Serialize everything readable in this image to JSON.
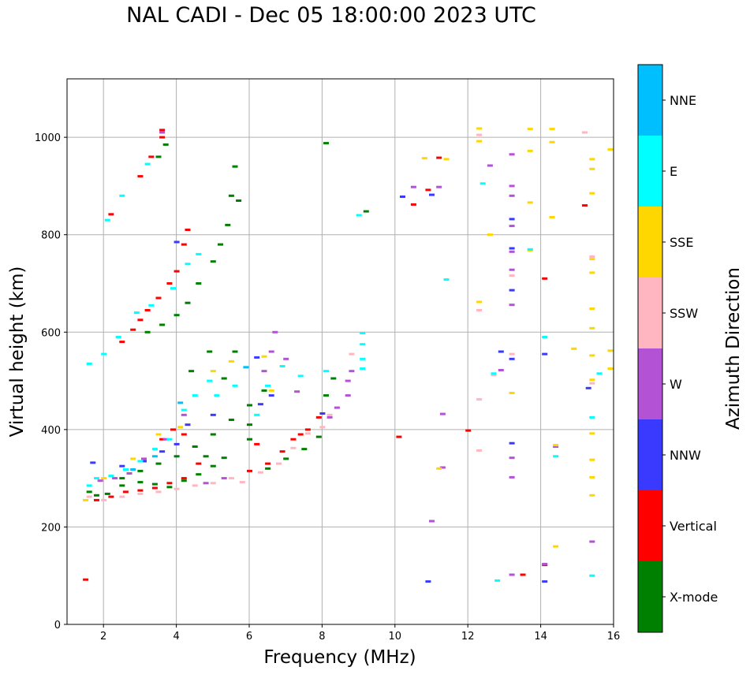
{
  "chart_data": {
    "type": "scatter",
    "title": "NAL CADI - Dec 05 18:00:00 2023 UTC",
    "xlabel": "Frequency (MHz)",
    "ylabel": "Virtual height (km)",
    "xlim": [
      1.0,
      16.0
    ],
    "ylim": [
      0,
      1120
    ],
    "xticks": [
      2,
      4,
      6,
      8,
      10,
      12,
      14,
      16
    ],
    "yticks": [
      0,
      200,
      400,
      600,
      800,
      1000
    ],
    "grid": true,
    "colorbar": {
      "label": "Azimuth Direction",
      "categories": [
        "X-mode",
        "Vertical",
        "NNW",
        "W",
        "SSW",
        "SSE",
        "E",
        "NNE"
      ],
      "colors": [
        "#008000",
        "#ff0000",
        "#3a3aff",
        "#b452d6",
        "#ffb6c1",
        "#ffd700",
        "#00ffff",
        "#00bfff"
      ]
    },
    "series": [
      {
        "name": "X-mode",
        "points": [
          [
            1.6,
            272
          ],
          [
            1.8,
            265
          ],
          [
            2.1,
            268
          ],
          [
            2.5,
            285
          ],
          [
            3.0,
            292
          ],
          [
            3.4,
            288
          ],
          [
            3.8,
            282
          ],
          [
            4.2,
            295
          ],
          [
            4.6,
            308
          ],
          [
            5.0,
            325
          ],
          [
            5.3,
            342
          ],
          [
            2.5,
            300
          ],
          [
            3.0,
            315
          ],
          [
            3.5,
            330
          ],
          [
            4.0,
            345
          ],
          [
            4.5,
            365
          ],
          [
            5.0,
            390
          ],
          [
            5.5,
            420
          ],
          [
            6.0,
            450
          ],
          [
            6.4,
            480
          ],
          [
            3.2,
            600
          ],
          [
            3.6,
            615
          ],
          [
            4.0,
            635
          ],
          [
            4.3,
            660
          ],
          [
            4.6,
            700
          ],
          [
            5.0,
            745
          ],
          [
            5.2,
            780
          ],
          [
            5.4,
            820
          ],
          [
            5.5,
            880
          ],
          [
            5.6,
            940
          ],
          [
            3.5,
            960
          ],
          [
            3.7,
            985
          ],
          [
            5.7,
            870
          ],
          [
            6.0,
            410
          ],
          [
            6.5,
            320
          ],
          [
            7.0,
            340
          ],
          [
            7.5,
            360
          ],
          [
            7.9,
            385
          ],
          [
            8.1,
            470
          ],
          [
            8.3,
            505
          ],
          [
            8.1,
            988
          ],
          [
            9.2,
            848
          ],
          [
            5.3,
            505
          ],
          [
            5.6,
            560
          ],
          [
            6.0,
            380
          ],
          [
            4.8,
            345
          ],
          [
            4.9,
            560
          ],
          [
            4.4,
            520
          ]
        ]
      },
      {
        "name": "Vertical",
        "points": [
          [
            1.5,
            92
          ],
          [
            1.8,
            255
          ],
          [
            2.2,
            262
          ],
          [
            2.6,
            272
          ],
          [
            3.0,
            275
          ],
          [
            3.4,
            280
          ],
          [
            3.8,
            290
          ],
          [
            4.2,
            300
          ],
          [
            4.6,
            330
          ],
          [
            4.2,
            390
          ],
          [
            3.9,
            400
          ],
          [
            3.6,
            380
          ],
          [
            2.5,
            580
          ],
          [
            2.8,
            605
          ],
          [
            3.0,
            625
          ],
          [
            3.2,
            645
          ],
          [
            3.5,
            670
          ],
          [
            3.8,
            700
          ],
          [
            4.0,
            725
          ],
          [
            4.2,
            780
          ],
          [
            4.3,
            810
          ],
          [
            3.0,
            920
          ],
          [
            3.3,
            960
          ],
          [
            3.6,
            1000
          ],
          [
            6.0,
            315
          ],
          [
            6.5,
            330
          ],
          [
            6.9,
            355
          ],
          [
            7.2,
            380
          ],
          [
            7.6,
            400
          ],
          [
            7.9,
            425
          ],
          [
            10.1,
            385
          ],
          [
            10.5,
            862
          ],
          [
            10.9,
            892
          ],
          [
            11.2,
            958
          ],
          [
            12.0,
            398
          ],
          [
            14.1,
            710
          ],
          [
            13.5,
            102
          ],
          [
            14.1,
            122
          ],
          [
            15.2,
            860
          ],
          [
            3.6,
            1015
          ],
          [
            2.2,
            842
          ],
          [
            7.4,
            390
          ],
          [
            6.2,
            370
          ]
        ]
      },
      {
        "name": "NNW",
        "points": [
          [
            1.7,
            332
          ],
          [
            2.5,
            325
          ],
          [
            3.1,
            335
          ],
          [
            3.6,
            355
          ],
          [
            4.0,
            370
          ],
          [
            4.3,
            410
          ],
          [
            5.0,
            430
          ],
          [
            6.3,
            452
          ],
          [
            6.6,
            470
          ],
          [
            8.0,
            433
          ],
          [
            10.2,
            878
          ],
          [
            10.9,
            88
          ],
          [
            11.0,
            882
          ],
          [
            12.9,
            560
          ],
          [
            13.2,
            832
          ],
          [
            13.2,
            772
          ],
          [
            13.2,
            686
          ],
          [
            13.2,
            545
          ],
          [
            13.2,
            372
          ],
          [
            14.1,
            555
          ],
          [
            14.1,
            88
          ],
          [
            15.3,
            485
          ],
          [
            4.0,
            785
          ],
          [
            6.2,
            548
          ]
        ]
      },
      {
        "name": "W",
        "points": [
          [
            1.9,
            295
          ],
          [
            2.3,
            300
          ],
          [
            2.7,
            310
          ],
          [
            3.1,
            340
          ],
          [
            3.7,
            380
          ],
          [
            4.2,
            430
          ],
          [
            4.8,
            290
          ],
          [
            5.3,
            300
          ],
          [
            6.4,
            520
          ],
          [
            6.6,
            560
          ],
          [
            6.7,
            600
          ],
          [
            7.0,
            545
          ],
          [
            7.3,
            478
          ],
          [
            8.2,
            425
          ],
          [
            8.4,
            445
          ],
          [
            8.7,
            470
          ],
          [
            8.7,
            500
          ],
          [
            8.8,
            520
          ],
          [
            10.5,
            898
          ],
          [
            11.0,
            212
          ],
          [
            11.2,
            898
          ],
          [
            11.3,
            432
          ],
          [
            11.3,
            322
          ],
          [
            12.6,
            942
          ],
          [
            12.9,
            522
          ],
          [
            13.2,
            900
          ],
          [
            13.2,
            880
          ],
          [
            13.2,
            818
          ],
          [
            13.2,
            765
          ],
          [
            13.2,
            728
          ],
          [
            13.2,
            656
          ],
          [
            13.2,
            342
          ],
          [
            13.2,
            302
          ],
          [
            13.2,
            102
          ],
          [
            14.1,
            124
          ],
          [
            14.4,
            365
          ],
          [
            15.4,
            170
          ],
          [
            3.6,
            1010
          ],
          [
            13.2,
            965
          ]
        ]
      },
      {
        "name": "SSW",
        "points": [
          [
            1.6,
            262
          ],
          [
            2.0,
            255
          ],
          [
            2.5,
            262
          ],
          [
            3.0,
            268
          ],
          [
            3.5,
            272
          ],
          [
            4.0,
            278
          ],
          [
            4.5,
            285
          ],
          [
            5.0,
            290
          ],
          [
            5.5,
            300
          ],
          [
            5.8,
            292
          ],
          [
            6.3,
            312
          ],
          [
            6.8,
            330
          ],
          [
            7.2,
            362
          ],
          [
            7.6,
            392
          ],
          [
            8.0,
            405
          ],
          [
            8.2,
            430
          ],
          [
            8.8,
            555
          ],
          [
            12.3,
            645
          ],
          [
            12.3,
            462
          ],
          [
            12.3,
            357
          ],
          [
            12.3,
            1005
          ],
          [
            12.7,
            512
          ],
          [
            13.2,
            555
          ],
          [
            13.2,
            716
          ],
          [
            15.2,
            1010
          ],
          [
            15.4,
            755
          ],
          [
            15.4,
            495
          ]
        ]
      },
      {
        "name": "SSE",
        "points": [
          [
            1.5,
            255
          ],
          [
            2.0,
            300
          ],
          [
            2.8,
            340
          ],
          [
            3.5,
            390
          ],
          [
            4.1,
            405
          ],
          [
            5.0,
            520
          ],
          [
            5.5,
            540
          ],
          [
            6.4,
            550
          ],
          [
            6.6,
            480
          ],
          [
            10.8,
            957
          ],
          [
            11.2,
            320
          ],
          [
            11.4,
            955
          ],
          [
            12.3,
            1018
          ],
          [
            12.3,
            992
          ],
          [
            12.3,
            662
          ],
          [
            12.6,
            800
          ],
          [
            13.2,
            475
          ],
          [
            13.7,
            1017
          ],
          [
            13.7,
            972
          ],
          [
            13.7,
            866
          ],
          [
            13.7,
            768
          ],
          [
            14.3,
            990
          ],
          [
            14.3,
            1017
          ],
          [
            14.3,
            836
          ],
          [
            14.4,
            160
          ],
          [
            14.4,
            368
          ],
          [
            14.9,
            566
          ],
          [
            15.4,
            955
          ],
          [
            15.4,
            935
          ],
          [
            15.4,
            885
          ],
          [
            15.4,
            722
          ],
          [
            15.4,
            648
          ],
          [
            15.4,
            608
          ],
          [
            15.4,
            552
          ],
          [
            15.4,
            502
          ],
          [
            15.4,
            392
          ],
          [
            15.4,
            338
          ],
          [
            15.4,
            302
          ],
          [
            15.4,
            265
          ],
          [
            15.9,
            975
          ],
          [
            15.9,
            562
          ],
          [
            15.9,
            525
          ],
          [
            15.4,
            750
          ]
        ]
      },
      {
        "name": "E",
        "points": [
          [
            1.6,
            285
          ],
          [
            1.8,
            300
          ],
          [
            2.2,
            305
          ],
          [
            2.6,
            318
          ],
          [
            3.0,
            335
          ],
          [
            3.4,
            360
          ],
          [
            3.8,
            380
          ],
          [
            4.2,
            440
          ],
          [
            4.5,
            470
          ],
          [
            5.1,
            470
          ],
          [
            5.6,
            490
          ],
          [
            6.2,
            430
          ],
          [
            6.5,
            490
          ],
          [
            6.9,
            530
          ],
          [
            7.4,
            510
          ],
          [
            8.1,
            520
          ],
          [
            9.1,
            525
          ],
          [
            9.1,
            545
          ],
          [
            9.1,
            575
          ],
          [
            9.1,
            598
          ],
          [
            9.0,
            840
          ],
          [
            1.6,
            535
          ],
          [
            2.0,
            555
          ],
          [
            2.4,
            590
          ],
          [
            2.9,
            640
          ],
          [
            3.3,
            655
          ],
          [
            3.9,
            690
          ],
          [
            4.3,
            740
          ],
          [
            4.6,
            760
          ],
          [
            2.5,
            880
          ],
          [
            3.2,
            945
          ],
          [
            2.1,
            830
          ],
          [
            11.4,
            708
          ],
          [
            12.4,
            905
          ],
          [
            12.8,
            90
          ],
          [
            14.1,
            590
          ],
          [
            14.4,
            345
          ],
          [
            15.4,
            425
          ],
          [
            15.4,
            100
          ],
          [
            13.7,
            770
          ],
          [
            12.7,
            515
          ],
          [
            15.6,
            515
          ],
          [
            4.9,
            500
          ]
        ]
      },
      {
        "name": "NNE",
        "points": [
          [
            2.8,
            318
          ],
          [
            3.4,
            345
          ],
          [
            4.1,
            455
          ],
          [
            5.9,
            528
          ]
        ]
      }
    ]
  }
}
